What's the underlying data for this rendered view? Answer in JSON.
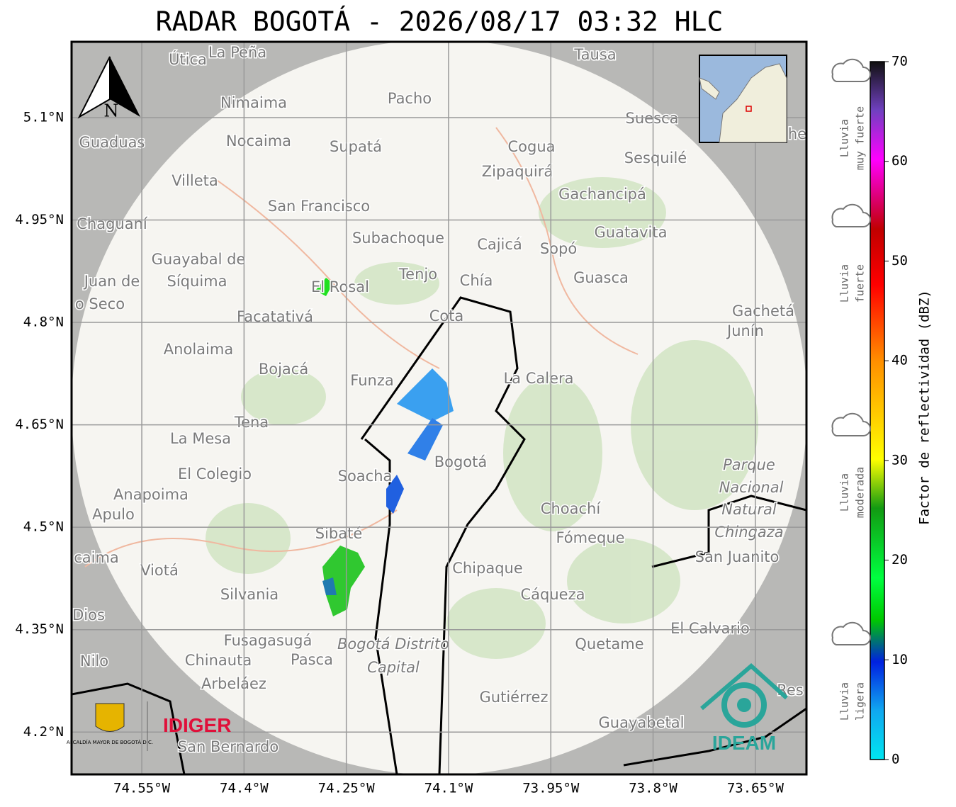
{
  "header": {
    "title": "RADAR BOGOTÁ - 2026/08/17 03:32 HLC"
  },
  "map": {
    "xlim": [
      -74.653,
      -73.575
    ],
    "ylim": [
      4.138,
      5.211
    ],
    "grid": true,
    "xticks": [
      {
        "value": -74.55,
        "label": "74.55°W"
      },
      {
        "value": -74.4,
        "label": "74.4°W"
      },
      {
        "value": -74.25,
        "label": "74.25°W"
      },
      {
        "value": -74.1,
        "label": "74.1°W"
      },
      {
        "value": -73.95,
        "label": "73.95°W"
      },
      {
        "value": -73.8,
        "label": "73.8°W"
      },
      {
        "value": -73.65,
        "label": "73.65°W"
      }
    ],
    "yticks": [
      {
        "value": 5.1,
        "label": "5.1°N"
      },
      {
        "value": 4.95,
        "label": "4.95°N"
      },
      {
        "value": 4.8,
        "label": "4.8°N"
      },
      {
        "value": 4.65,
        "label": "4.65°N"
      },
      {
        "value": 4.5,
        "label": "4.5°N"
      },
      {
        "value": 4.35,
        "label": "4.35°N"
      },
      {
        "value": 4.2,
        "label": "4.2°N"
      }
    ],
    "places": [
      "Útica",
      "La Peña",
      "Tausa",
      "Pacho",
      "Nimaima",
      "Guaduas",
      "Nocaima",
      "Supatá",
      "Cogua",
      "Suesca",
      "Sesquilé",
      "Zipaquirá",
      "Villeta",
      "Gachancipá",
      "San Francisco",
      "Chaguaní",
      "Subachoque",
      "Cajicá",
      "Sopó",
      "Guatavita",
      "Guayabal de",
      "Síquima",
      "Tenjo",
      "Chía",
      "Guasca",
      "Juan de",
      "o Seco",
      "El Rosal",
      "Cota",
      "Facatativá",
      "Gachetá",
      "Junín",
      "Anolaima",
      "Bojacá",
      "Funza",
      "La Calera",
      "Tena",
      "La Mesa",
      "Bogotá",
      "Parque",
      "Nacional",
      "Natural",
      "Chingaza",
      "El Colegio",
      "Soacha",
      "Anapoima",
      "Apulo",
      "Choachí",
      "Sibaté",
      "Fómeque",
      "San Juanito",
      "caima",
      "Viotá",
      "Chipaque",
      "Silvania",
      "Cáqueza",
      "Dios",
      "El Calvario",
      "Fusagasugá",
      "Bogotá Distrito",
      "Capital",
      "Quetame",
      "Nilo",
      "Chinauta",
      "Pasca",
      "Arbeláez",
      "Gutiérrez",
      "Res",
      "Guayabetal",
      "San Bernardo",
      "he"
    ],
    "north": "N"
  },
  "logos": {
    "left_org": "IDIGER",
    "left_caption": "ALCALDÍA MAYOR DE BOGOTÁ D.C.",
    "right_org": "IDEAM"
  },
  "colorbar": {
    "label": "Factor de reflectividad (dBZ)",
    "lim": [
      0,
      70
    ],
    "ticks": [
      0,
      10,
      20,
      30,
      40,
      50,
      60,
      70
    ],
    "legend": [
      [
        "Lluvia",
        "muy fuerte"
      ],
      [
        "Lluvia",
        "fuerte"
      ],
      [
        "Lluvia",
        "moderada"
      ],
      [
        "Lluvia",
        "ligera"
      ]
    ]
  }
}
